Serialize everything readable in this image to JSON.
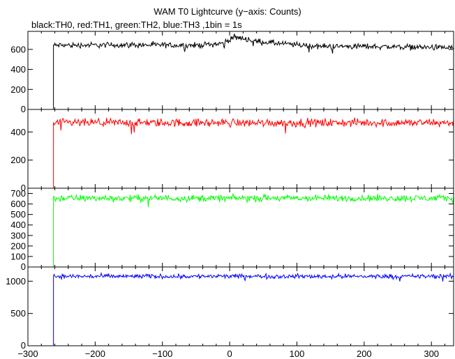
{
  "chart_data": {
    "type": "line",
    "title": "WAM T0 Lightcurve (y−axis: Counts)",
    "subtitle": "black:TH0, red:TH1, green:TH2, blue:TH3 ,1bin = 1s",
    "xlabel": "",
    "ylabel": "",
    "xlim": [
      -300,
      333
    ],
    "x_ticks": [
      -300,
      -200,
      -100,
      0,
      100,
      200,
      300
    ],
    "x_tick_labels": [
      "−300",
      "−200",
      "−100",
      "0",
      "100",
      "200",
      "300"
    ],
    "bin_seconds": 1,
    "grid": false,
    "legend": "none",
    "panels": [
      {
        "name": "TH0",
        "color": "#000000",
        "ylim": [
          0,
          780
        ],
        "y_ticks": [
          0,
          200,
          400,
          600
        ],
        "pre_level": 0,
        "rise_time": -262,
        "spike_peak": 135,
        "mean": 640,
        "noise": 25,
        "segments": [
          {
            "x": -262,
            "y": 640
          },
          {
            "x": -150,
            "y": 645
          },
          {
            "x": -50,
            "y": 640
          },
          {
            "x": -10,
            "y": 660
          },
          {
            "x": 5,
            "y": 720
          },
          {
            "x": 20,
            "y": 710
          },
          {
            "x": 40,
            "y": 680
          },
          {
            "x": 80,
            "y": 655
          },
          {
            "x": 135,
            "y": 630
          },
          {
            "x": 200,
            "y": 630
          },
          {
            "x": 260,
            "y": 625
          },
          {
            "x": 333,
            "y": 615
          }
        ]
      },
      {
        "name": "TH1",
        "color": "#ff0000",
        "ylim": [
          0,
          560
        ],
        "y_ticks": [
          0,
          200,
          400
        ],
        "pre_level": 0,
        "rise_time": -262,
        "spike_peak": 0,
        "mean": 465,
        "noise": 25,
        "segments": [
          {
            "x": -262,
            "y": 465
          },
          {
            "x": 333,
            "y": 465
          }
        ]
      },
      {
        "name": "TH2",
        "color": "#00ff00",
        "ylim": [
          0,
          750
        ],
        "y_ticks": [
          0,
          100,
          200,
          300,
          400,
          500,
          600,
          700
        ],
        "pre_level": 0,
        "rise_time": -262,
        "spike_peak": 0,
        "mean": 655,
        "noise": 28,
        "segments": [
          {
            "x": -262,
            "y": 655
          },
          {
            "x": 333,
            "y": 655
          }
        ]
      },
      {
        "name": "TH3",
        "color": "#0000ff",
        "ylim": [
          0,
          1220
        ],
        "y_ticks": [
          0,
          500,
          1000
        ],
        "pre_level": 0,
        "rise_time": -262,
        "spike_peak": 0,
        "mean": 1075,
        "noise": 30,
        "segments": [
          {
            "x": -262,
            "y": 1075
          },
          {
            "x": 333,
            "y": 1075
          }
        ]
      }
    ]
  }
}
